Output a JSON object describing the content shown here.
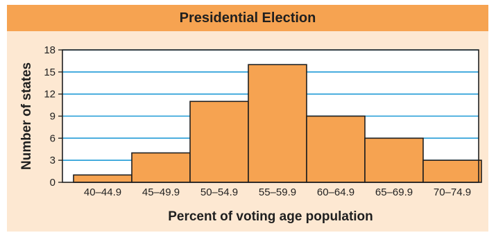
{
  "chart_data": {
    "type": "bar",
    "title": "Presidential Election",
    "xlabel": "Percent of voting age population",
    "ylabel": "Number of states",
    "categories": [
      "40–44.9",
      "45–49.9",
      "50–54.9",
      "55–59.9",
      "60–64.9",
      "65–69.9",
      "70–74.9"
    ],
    "values": [
      1,
      4,
      11,
      16,
      9,
      6,
      3
    ],
    "yticks": [
      "0",
      "3",
      "6",
      "9",
      "12",
      "15",
      "18"
    ],
    "ylim": [
      0,
      18
    ],
    "grid": true,
    "legend": "none",
    "colors": {
      "bar": "#f6a351",
      "grid": "#1e9ad6",
      "frame_bg": "#fde8d2",
      "plot_bg": "#ffffff",
      "title_bar": "#f6a351"
    }
  }
}
